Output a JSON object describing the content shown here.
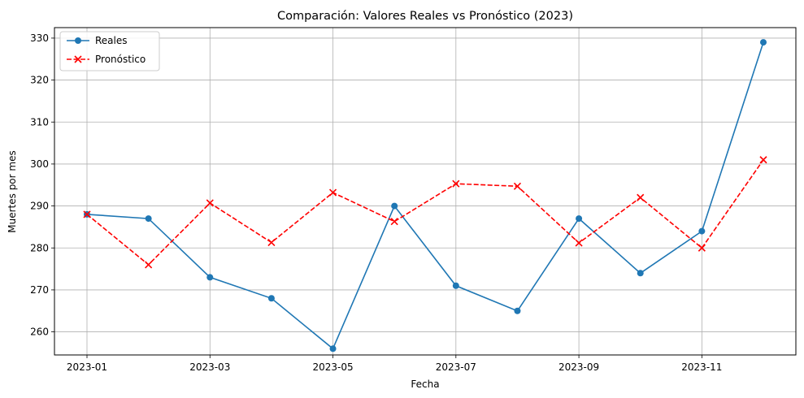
{
  "chart_data": {
    "type": "line",
    "title": "Comparación: Valores Reales vs Pronóstico (2023)",
    "xlabel": "Fecha",
    "ylabel": "Muertes por mes",
    "x": [
      "2023-01",
      "2023-02",
      "2023-03",
      "2023-04",
      "2023-05",
      "2023-06",
      "2023-07",
      "2023-08",
      "2023-09",
      "2023-10",
      "2023-11",
      "2023-12"
    ],
    "x_ticks": [
      "2023-01",
      "2023-03",
      "2023-05",
      "2023-07",
      "2023-09",
      "2023-11"
    ],
    "y_ticks": [
      260,
      270,
      280,
      290,
      300,
      310,
      320,
      330
    ],
    "ylim": [
      254.5,
      332.5
    ],
    "grid": true,
    "legend_position": "top-left",
    "series": [
      {
        "name": "Reales",
        "color": "#1f77b4",
        "marker": "circle",
        "linestyle": "solid",
        "values": [
          288,
          287,
          273,
          268,
          256,
          290,
          271,
          265,
          287,
          274,
          284,
          329
        ]
      },
      {
        "name": "Pronóstico",
        "color": "#ff0000",
        "marker": "x",
        "linestyle": "dashed",
        "values": [
          288,
          276,
          290.7,
          281.3,
          293.2,
          286.3,
          295.3,
          294.7,
          281.2,
          292,
          280,
          301
        ]
      }
    ]
  }
}
